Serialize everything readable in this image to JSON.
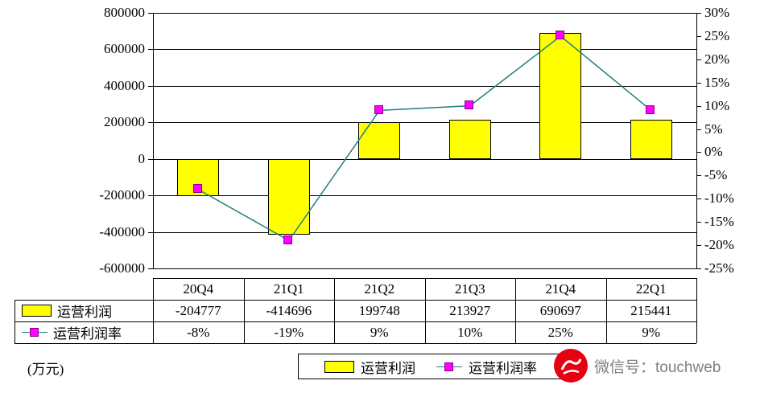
{
  "chart_data": {
    "type": "combo",
    "categories": [
      "20Q4",
      "21Q1",
      "21Q2",
      "21Q3",
      "21Q4",
      "22Q1"
    ],
    "series": [
      {
        "name": "运营利润",
        "type": "bar",
        "values": [
          -204777,
          -414696,
          199748,
          213927,
          690697,
          215441
        ],
        "color": "#FFFF00"
      },
      {
        "name": "运营利润率",
        "type": "line",
        "values": [
          -8,
          -19,
          9,
          10,
          25,
          9
        ],
        "color": "#1F7F7F",
        "marker_color": "#FF00FF"
      }
    ],
    "left_axis": {
      "max": 800000,
      "min": -600000,
      "step": 200000,
      "ticks": [
        "800000",
        "600000",
        "400000",
        "200000",
        "0",
        "-200000",
        "-400000",
        "-600000"
      ]
    },
    "right_axis": {
      "max": 30,
      "min": -25,
      "step": 5,
      "ticks": [
        "30%",
        "25%",
        "20%",
        "15%",
        "10%",
        "5%",
        "0%",
        "-5%",
        "-10%",
        "-15%",
        "-20%",
        "-25%"
      ]
    },
    "unit_label": "(万元)",
    "grid": true,
    "legend_position": "bottom"
  },
  "table": {
    "categories": [
      "20Q4",
      "21Q1",
      "21Q2",
      "21Q3",
      "21Q4",
      "22Q1"
    ],
    "rows": [
      {
        "label": "运营利润",
        "values": [
          "-204777",
          "-414696",
          "199748",
          "213927",
          "690697",
          "215441"
        ]
      },
      {
        "label": "运营利润率",
        "values": [
          "-8%",
          "-19%",
          "9%",
          "10%",
          "25%",
          "9%"
        ]
      }
    ]
  },
  "legend": {
    "items": [
      {
        "label": "运营利润"
      },
      {
        "label": "运营利润率"
      }
    ]
  },
  "watermark": {
    "text": "微信号：touchweb"
  }
}
